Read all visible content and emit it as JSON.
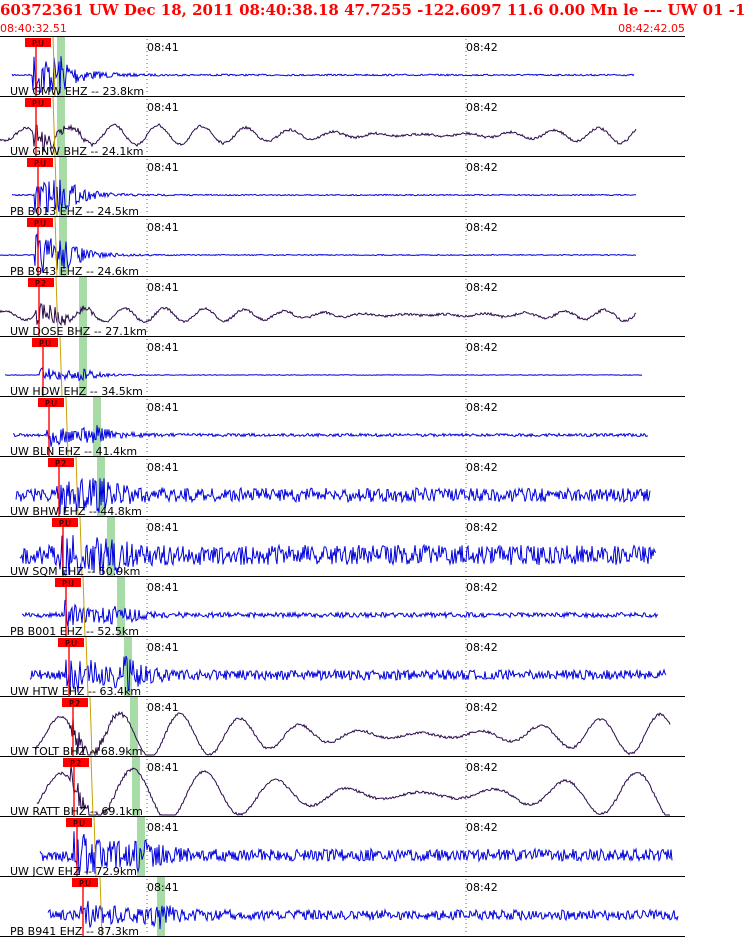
{
  "header": {
    "title": "60372361 UW Dec 18, 2011 08:40:38.18   47.7255 -122.6097 11.6 0.00 Mn le --- UW 01  -1",
    "start_time": "08:40:32.51",
    "end_time": "08:42:42.05"
  },
  "tick_labels": [
    "08:41",
    "08:42"
  ],
  "colors": {
    "header_text": "#ff0000",
    "pick_marker": "#ff0000",
    "ehz_trace": "#0000dd",
    "bhz_trace": "#2a0a4a",
    "s_window": "#a7dca7",
    "separator": "#000000"
  },
  "traces": [
    {
      "label": "UW GMW EHZ -- 23.8km",
      "channel": "EHZ",
      "pick": "P.U"
    },
    {
      "label": "UW GNW BHZ -- 24.1km",
      "channel": "BHZ",
      "pick": "P.U"
    },
    {
      "label": "PB B013 EHZ -- 24.5km",
      "channel": "EHZ",
      "pick": "P.U"
    },
    {
      "label": "PB B943 EHZ -- 24.6km",
      "channel": "EHZ",
      "pick": "P.U"
    },
    {
      "label": "UW DOSE BHZ -- 27.1km",
      "channel": "BHZ",
      "pick": "P.2"
    },
    {
      "label": "UW HDW EHZ -- 34.5km",
      "channel": "EHZ",
      "pick": "P.U"
    },
    {
      "label": "UW BLN EHZ -- 41.4km",
      "channel": "EHZ",
      "pick": "P.U"
    },
    {
      "label": "UW BHW EHZ -- 44.8km",
      "channel": "EHZ",
      "pick": "P.2"
    },
    {
      "label": "UW SQM EHZ -- 50.9km",
      "channel": "EHZ",
      "pick": "P.U"
    },
    {
      "label": "PB B001 EHZ -- 52.5km",
      "channel": "EHZ",
      "pick": "P.U"
    },
    {
      "label": "UW HTW EHZ -- 63.4km",
      "channel": "EHZ",
      "pick": "P.U"
    },
    {
      "label": "UW TOLT BHZ -- 68.9km",
      "channel": "BHZ",
      "pick": "P.2"
    },
    {
      "label": "UW RATT BHZ -- 69.1km",
      "channel": "BHZ",
      "pick": "P.2"
    },
    {
      "label": "UW JCW EHZ -- 72.9km",
      "channel": "EHZ",
      "pick": "P.U"
    },
    {
      "label": "PB B941 EHZ -- 87.3km",
      "channel": "EHZ",
      "pick": "P.U"
    }
  ]
}
